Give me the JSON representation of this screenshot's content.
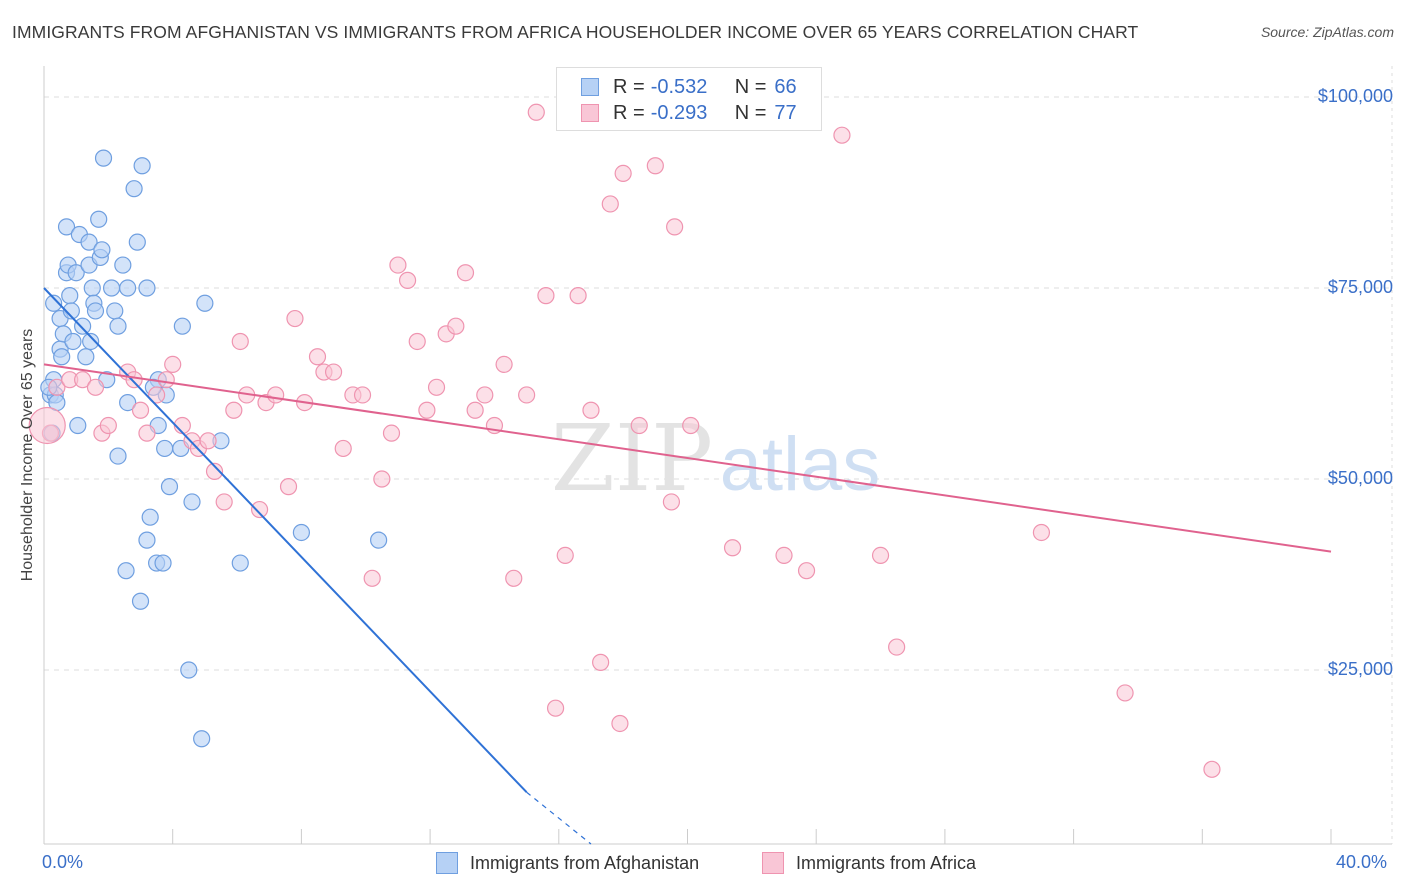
{
  "header": {
    "title": "IMMIGRANTS FROM AFGHANISTAN VS IMMIGRANTS FROM AFRICA HOUSEHOLDER INCOME OVER 65 YEARS CORRELATION CHART",
    "source": "Source: ZipAtlas.com"
  },
  "legend": {
    "row1": {
      "r_label": "R =",
      "r_value": "-0.532",
      "n_label": "N =",
      "n_value": "66"
    },
    "row2": {
      "r_label": "R =",
      "r_value": "-0.293",
      "n_label": "N =",
      "n_value": "77"
    }
  },
  "watermark": {
    "zip": "ZIP",
    "atlas": "atlas"
  },
  "colors": {
    "blue_fill": "#b6d1f5",
    "blue_stroke": "#6f9fe0",
    "blue_line": "#2f72d6",
    "pink_fill": "#f9c6d6",
    "pink_stroke": "#ef94b0",
    "pink_line": "#e0628e",
    "axis_text": "#3a6fc8",
    "grid": "#dddddd"
  },
  "chart_data": {
    "type": "scatter",
    "title": "IMMIGRANTS FROM AFGHANISTAN VS IMMIGRANTS FROM AFRICA HOUSEHOLDER INCOME OVER 65 YEARS CORRELATION CHART",
    "xlabel": "",
    "ylabel": "Householder Income Over 65 years",
    "xlim": [
      0,
      40
    ],
    "ylim": [
      0,
      105000
    ],
    "x_tick_labels": [
      "0.0%",
      "40.0%"
    ],
    "y_ticks": [
      25000,
      50000,
      75000,
      100000
    ],
    "y_tick_labels": [
      "$25,000",
      "$50,000",
      "$75,000",
      "$100,000"
    ],
    "grid": true,
    "legend_position": "top-center",
    "series": [
      {
        "name": "Immigrants from Afghanistan",
        "color": "#6f9fe0",
        "trend": {
          "x": [
            0.0,
            15.0
          ],
          "y": [
            75000,
            9000
          ],
          "dashed_to": [
            17.0,
            0
          ]
        },
        "points": [
          [
            0.2,
            61000
          ],
          [
            0.25,
            56000
          ],
          [
            0.3,
            63000
          ],
          [
            0.3,
            73000
          ],
          [
            0.35,
            61000
          ],
          [
            0.5,
            67000
          ],
          [
            0.5,
            71000
          ],
          [
            0.55,
            66000
          ],
          [
            0.6,
            69000
          ],
          [
            0.7,
            77000
          ],
          [
            0.7,
            83000
          ],
          [
            0.75,
            78000
          ],
          [
            0.8,
            74000
          ],
          [
            0.85,
            72000
          ],
          [
            0.9,
            68000
          ],
          [
            1.0,
            77000
          ],
          [
            1.05,
            57000
          ],
          [
            1.1,
            82000
          ],
          [
            1.2,
            70000
          ],
          [
            1.3,
            66000
          ],
          [
            1.4,
            78000
          ],
          [
            1.4,
            81000
          ],
          [
            1.45,
            68000
          ],
          [
            1.5,
            75000
          ],
          [
            1.55,
            73000
          ],
          [
            1.6,
            72000
          ],
          [
            1.7,
            84000
          ],
          [
            1.75,
            79000
          ],
          [
            1.8,
            80000
          ],
          [
            1.85,
            92000
          ],
          [
            1.95,
            63000
          ],
          [
            2.1,
            75000
          ],
          [
            2.2,
            72000
          ],
          [
            2.3,
            53000
          ],
          [
            2.3,
            70000
          ],
          [
            2.45,
            78000
          ],
          [
            2.55,
            38000
          ],
          [
            2.6,
            60000
          ],
          [
            2.6,
            75000
          ],
          [
            2.8,
            88000
          ],
          [
            2.9,
            81000
          ],
          [
            3.0,
            34000
          ],
          [
            3.05,
            91000
          ],
          [
            3.2,
            42000
          ],
          [
            3.2,
            75000
          ],
          [
            3.3,
            45000
          ],
          [
            3.5,
            39000
          ],
          [
            3.55,
            57000
          ],
          [
            3.55,
            63000
          ],
          [
            3.7,
            39000
          ],
          [
            3.75,
            54000
          ],
          [
            3.8,
            61000
          ],
          [
            3.9,
            49000
          ],
          [
            4.25,
            54000
          ],
          [
            4.3,
            70000
          ],
          [
            4.5,
            25000
          ],
          [
            4.6,
            47000
          ],
          [
            4.9,
            16000
          ],
          [
            5.0,
            73000
          ],
          [
            5.5,
            55000
          ],
          [
            6.1,
            39000
          ],
          [
            8.0,
            43000
          ],
          [
            10.4,
            42000
          ],
          [
            0.15,
            62000
          ],
          [
            0.4,
            60000
          ],
          [
            3.4,
            62000
          ]
        ]
      },
      {
        "name": "Immigrants from Africa",
        "color": "#ef94b0",
        "trend": {
          "x": [
            0.0,
            40.0
          ],
          "y": [
            65000,
            40500
          ]
        },
        "points": [
          [
            0.2,
            56000
          ],
          [
            0.4,
            62000
          ],
          [
            0.8,
            63000
          ],
          [
            1.2,
            63000
          ],
          [
            1.6,
            62000
          ],
          [
            1.8,
            56000
          ],
          [
            2.0,
            57000
          ],
          [
            2.6,
            64000
          ],
          [
            2.8,
            63000
          ],
          [
            3.0,
            59000
          ],
          [
            3.2,
            56000
          ],
          [
            3.5,
            61000
          ],
          [
            3.8,
            63000
          ],
          [
            4.0,
            65000
          ],
          [
            4.3,
            57000
          ],
          [
            4.6,
            55000
          ],
          [
            4.8,
            54000
          ],
          [
            5.1,
            55000
          ],
          [
            5.3,
            51000
          ],
          [
            5.6,
            47000
          ],
          [
            5.9,
            59000
          ],
          [
            6.1,
            68000
          ],
          [
            6.3,
            61000
          ],
          [
            6.7,
            46000
          ],
          [
            6.9,
            60000
          ],
          [
            7.2,
            61000
          ],
          [
            7.6,
            49000
          ],
          [
            7.8,
            71000
          ],
          [
            8.1,
            60000
          ],
          [
            8.5,
            66000
          ],
          [
            8.7,
            64000
          ],
          [
            9.0,
            64000
          ],
          [
            9.3,
            54000
          ],
          [
            9.6,
            61000
          ],
          [
            9.9,
            61000
          ],
          [
            10.2,
            37000
          ],
          [
            10.5,
            50000
          ],
          [
            10.8,
            56000
          ],
          [
            11.0,
            78000
          ],
          [
            11.3,
            76000
          ],
          [
            11.6,
            68000
          ],
          [
            11.9,
            59000
          ],
          [
            12.2,
            62000
          ],
          [
            12.5,
            69000
          ],
          [
            12.8,
            70000
          ],
          [
            13.1,
            77000
          ],
          [
            13.4,
            59000
          ],
          [
            13.7,
            61000
          ],
          [
            14.0,
            57000
          ],
          [
            14.3,
            65000
          ],
          [
            14.6,
            37000
          ],
          [
            15.0,
            61000
          ],
          [
            15.3,
            98000
          ],
          [
            15.6,
            74000
          ],
          [
            15.9,
            20000
          ],
          [
            16.2,
            40000
          ],
          [
            16.6,
            74000
          ],
          [
            17.0,
            59000
          ],
          [
            17.3,
            26000
          ],
          [
            17.6,
            86000
          ],
          [
            17.9,
            18000
          ],
          [
            18.0,
            90000
          ],
          [
            18.5,
            57000
          ],
          [
            19.0,
            91000
          ],
          [
            19.5,
            47000
          ],
          [
            19.6,
            83000
          ],
          [
            20.1,
            57000
          ],
          [
            21.4,
            41000
          ],
          [
            23.0,
            40000
          ],
          [
            23.7,
            38000
          ],
          [
            24.8,
            95000
          ],
          [
            26.0,
            40000
          ],
          [
            26.5,
            28000
          ],
          [
            31.0,
            43000
          ],
          [
            33.6,
            22000
          ],
          [
            36.3,
            12000
          ],
          [
            0.1,
            57000
          ]
        ]
      }
    ]
  },
  "x_axis": {
    "left_label": "0.0%",
    "right_label": "40.0%"
  },
  "y_axis": {
    "label": "Householder Income Over 65 years"
  },
  "bottom_legend": {
    "afghanistan": "Immigrants from Afghanistan",
    "africa": "Immigrants from Africa"
  }
}
